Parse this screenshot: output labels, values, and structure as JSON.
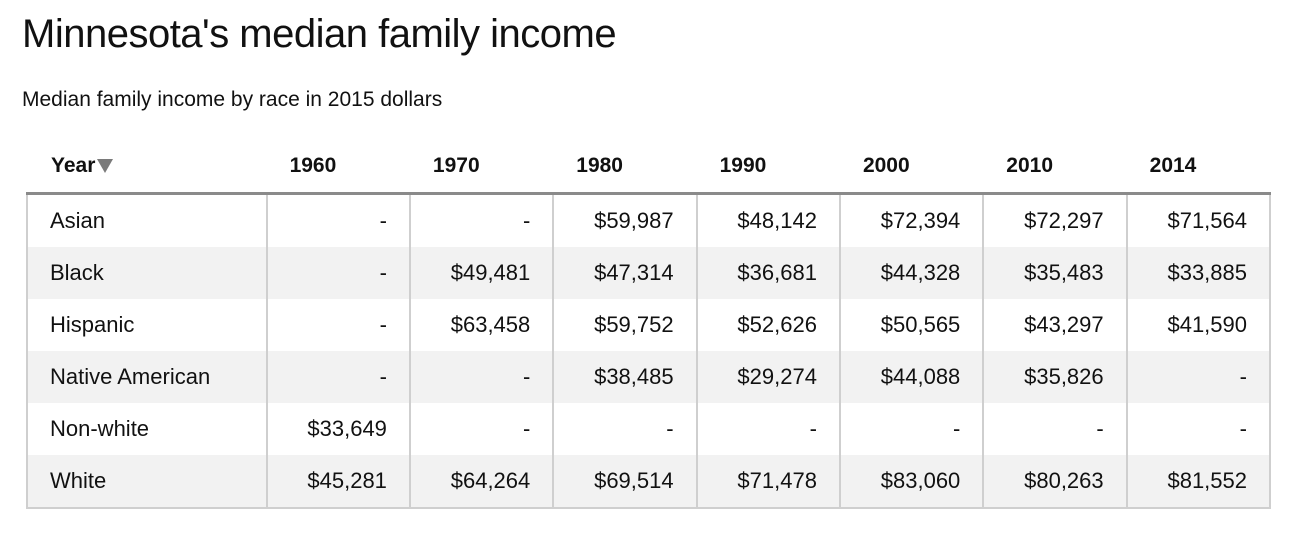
{
  "header": {
    "title": "Minnesota's median family income",
    "subtitle": "Median family income by race in 2015 dollars"
  },
  "chart_data": {
    "type": "table",
    "title": "Minnesota's median family income",
    "subtitle": "Median family income by race in 2015 dollars",
    "column_header": "Year",
    "sort_indicator": "descending-arrow",
    "columns": [
      "1960",
      "1970",
      "1980",
      "1990",
      "2000",
      "2010",
      "2014"
    ],
    "rows": [
      {
        "label": "Asian",
        "values": [
          "-",
          "-",
          "$59,987",
          "$48,142",
          "$72,394",
          "$72,297",
          "$71,564"
        ]
      },
      {
        "label": "Black",
        "values": [
          "-",
          "$49,481",
          "$47,314",
          "$36,681",
          "$44,328",
          "$35,483",
          "$33,885"
        ]
      },
      {
        "label": "Hispanic",
        "values": [
          "-",
          "$63,458",
          "$59,752",
          "$52,626",
          "$50,565",
          "$43,297",
          "$41,590"
        ]
      },
      {
        "label": "Native American",
        "values": [
          "-",
          "-",
          "$38,485",
          "$29,274",
          "$44,088",
          "$35,826",
          "-"
        ]
      },
      {
        "label": "Non-white",
        "values": [
          "$33,649",
          "-",
          "-",
          "-",
          "-",
          "-",
          "-"
        ]
      },
      {
        "label": "White",
        "values": [
          "$45,281",
          "$64,264",
          "$69,514",
          "$71,478",
          "$83,060",
          "$80,263",
          "$81,552"
        ]
      }
    ],
    "colors": {
      "stripe": "#f2f2f2",
      "header_rule": "#8a8a8a",
      "cell_border": "#cfcfcf",
      "sort_arrow": "#7a7a7a"
    }
  }
}
